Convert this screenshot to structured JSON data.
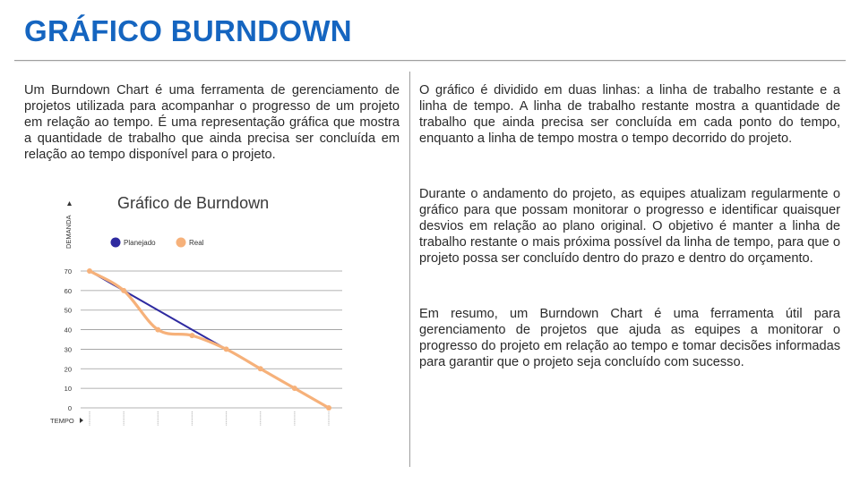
{
  "slide": {
    "title": "GRÁFICO BURNDOWN"
  },
  "left_column": {
    "paragraph": "Um Burndown Chart é uma ferramenta de gerenciamento de projetos utilizada para acompanhar o progresso de um projeto em relação ao tempo. É uma representação gráfica que mostra a quantidade de trabalho que ainda precisa ser concluída em relação ao tempo disponível para o projeto."
  },
  "right_column": {
    "paragraphs": [
      "O gráfico é dividido em duas linhas: a linha de trabalho restante e a linha de tempo. A linha de trabalho restante mostra a quantidade de trabalho que ainda precisa ser concluída em cada ponto do tempo, enquanto a linha de tempo mostra o tempo decorrido do projeto.",
      "Durante o andamento do projeto, as equipes atualizam regularmente o gráfico para que possam monitorar o progresso e identificar quaisquer desvios em relação ao plano original. O objetivo é manter a linha de trabalho restante o mais próxima possível da linha de tempo, para que o projeto possa ser concluído dentro do prazo e dentro do orçamento.",
      "Em resumo, um Burndown Chart é uma ferramenta útil para gerenciamento de projetos que ajuda as equipes a monitorar o progresso do projeto em relação ao tempo e tomar decisões informadas para garantir que o projeto seja concluído com sucesso."
    ]
  },
  "chart_data": {
    "type": "line",
    "title": "Gráfico de Burndown",
    "xlabel": "TEMPO",
    "ylabel": "DEMANDA",
    "x": [
      0,
      1,
      2,
      3,
      4,
      5,
      6,
      7
    ],
    "ylim": [
      0,
      70
    ],
    "yticks": [
      0,
      10,
      20,
      30,
      40,
      50,
      60,
      70
    ],
    "grid": true,
    "legend_position": "top-left",
    "series": [
      {
        "name": "Planejado",
        "color": "#2e2aa0",
        "values": [
          70,
          60,
          50,
          40,
          30,
          20,
          10,
          0
        ]
      },
      {
        "name": "Real",
        "color": "#f6b17a",
        "values": [
          70,
          60,
          40,
          37,
          30,
          20,
          10,
          0
        ]
      }
    ]
  }
}
